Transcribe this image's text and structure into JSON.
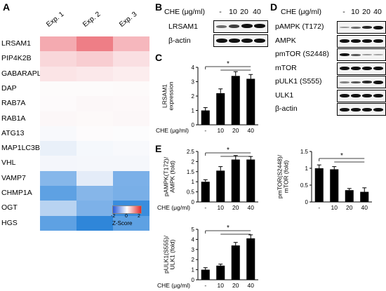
{
  "panels": {
    "a": "A",
    "b": "B",
    "c": "C",
    "d": "D",
    "e": "E"
  },
  "heatmap": {
    "columns": [
      "Exp. 1",
      "Exp. 2",
      "Exp. 3"
    ],
    "rows": [
      "LRSAM1",
      "PIP4K2B",
      "GABARAPL1",
      "DAP",
      "RAB7A",
      "RAB1A",
      "ATG13",
      "MAP1LC3B",
      "VHL",
      "VAMP7",
      "CHMP1A",
      "OGT",
      "HGS"
    ],
    "colors": [
      [
        "#f4aab0",
        "#ee7e86",
        "#f6b7bd"
      ],
      [
        "#f9d7da",
        "#f8cdd1",
        "#fadfe2"
      ],
      [
        "#fbe4e6",
        "#fbe8ea",
        "#fcedee"
      ],
      [
        "#fdfbfb",
        "#fdfbfb",
        "#fdfafa"
      ],
      [
        "#fdfafb",
        "#fcf7f8",
        "#fdf8f9"
      ],
      [
        "#fcf7f8",
        "#fdf9f9",
        "#fcf7f8"
      ],
      [
        "#f8f9fc",
        "#fdfbfc",
        "#fcfcfd"
      ],
      [
        "#e9f0f9",
        "#f5f8fc",
        "#f8f9fc"
      ],
      [
        "#f4f6fb",
        "#f5f7fb",
        "#f5f7fb"
      ],
      [
        "#86b7ea",
        "#e4ecf8",
        "#7bb0e8"
      ],
      [
        "#5ea1e3",
        "#86b6e9",
        "#79afe7"
      ],
      [
        "#b8d3f1",
        "#7db1e8",
        "#3a8ddd"
      ],
      [
        "#5ea1e3",
        "#2f86d9",
        "#5ea1e3"
      ]
    ],
    "legend": {
      "min": "-2",
      "zero": "0",
      "max": "2",
      "title": "Z-Score"
    }
  },
  "blot_b": {
    "condition_title": "CHE (μg/ml)",
    "conditions": [
      "-",
      "10",
      "20",
      "40"
    ],
    "labels": [
      "LRSAM1",
      "β-actin"
    ]
  },
  "blot_d": {
    "condition_title": "CHE (μg/ml)",
    "conditions": [
      "-",
      "10",
      "20",
      "40"
    ],
    "labels": [
      "pAMPK (T172)",
      "AMPK",
      "pmTOR (S2448)",
      "mTOR",
      "pULK1 (S555)",
      "ULK1",
      "β-actin"
    ]
  },
  "chart_data": [
    {
      "panel": "C",
      "type": "bar",
      "categories": [
        "-",
        "10",
        "20",
        "40"
      ],
      "values": [
        1.0,
        2.2,
        3.4,
        3.2
      ],
      "errors": [
        0.2,
        0.3,
        0.3,
        0.3
      ],
      "ylabel": "LRSAM1\nexpression",
      "xlabel": "CHE (μg/ml)",
      "ylim": [
        0,
        4
      ],
      "yticks": [
        0,
        1,
        2,
        3,
        4
      ],
      "significance": "*"
    },
    {
      "panel": "E1",
      "type": "bar",
      "categories": [
        "-",
        "10",
        "20",
        "40"
      ],
      "values": [
        1.0,
        1.55,
        2.1,
        2.1
      ],
      "errors": [
        0.1,
        0.2,
        0.2,
        0.15
      ],
      "ylabel": "pAMPK(T172)/\nAMPK",
      "yunit": "(fold)",
      "xlabel": "CHE (μg/ml)",
      "ylim": [
        0,
        2.5
      ],
      "yticks": [
        0,
        0.5,
        1,
        1.5,
        2,
        2.5
      ],
      "significance": "*"
    },
    {
      "panel": "E2",
      "type": "bar",
      "categories": [
        "-",
        "10",
        "20",
        "40"
      ],
      "values": [
        1.0,
        0.97,
        0.35,
        0.3
      ],
      "errors": [
        0.1,
        0.08,
        0.05,
        0.12
      ],
      "ylabel": "pmTOR(S2448)/\nmTOR",
      "yunit": "(fold)",
      "xlabel": "CHE (μg/ml)",
      "ylim": [
        0,
        1.5
      ],
      "yticks": [
        0,
        0.5,
        1,
        1.5
      ],
      "significance": "*"
    },
    {
      "panel": "E3",
      "type": "bar",
      "categories": [
        "-",
        "10",
        "20",
        "40"
      ],
      "values": [
        1.0,
        1.4,
        3.4,
        4.1
      ],
      "errors": [
        0.2,
        0.15,
        0.3,
        0.35
      ],
      "ylabel": "pULK1(S555)/\nULK1",
      "yunit": "(fold)",
      "xlabel": "CHE (μg/ml)",
      "ylim": [
        0,
        5
      ],
      "yticks": [
        0,
        1,
        2,
        3,
        4,
        5
      ],
      "significance": "*"
    }
  ]
}
